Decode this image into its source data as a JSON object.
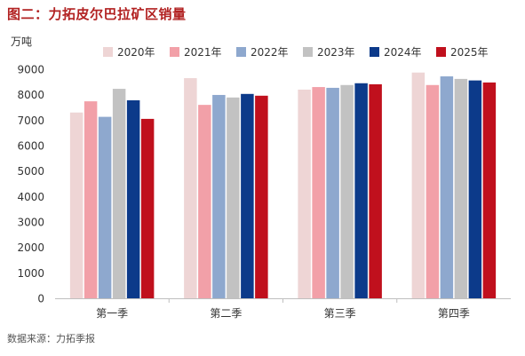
{
  "title": "图二：力拓皮尔巴拉矿区销量",
  "source": "数据来源：力拓季报",
  "colors": [
    "#eed5d5",
    "#f2a0a8",
    "#8ea8ce",
    "#c2c2c2",
    "#0c3a8a",
    "#c0101d"
  ],
  "chart_data": {
    "type": "bar",
    "title": "",
    "ylabel": "万吨",
    "xlabel": "",
    "categories": [
      "第一季",
      "第二季",
      "第三季",
      "第四季"
    ],
    "ylim": [
      0,
      9000
    ],
    "yticks": [
      0,
      1000,
      2000,
      3000,
      4000,
      5000,
      6000,
      7000,
      8000,
      9000
    ],
    "grid": false,
    "legend_position": "top",
    "series": [
      {
        "name": "2020年",
        "values": [
          7300,
          8650,
          8200,
          8870
        ]
      },
      {
        "name": "2021年",
        "values": [
          7740,
          7600,
          8300,
          8380
        ]
      },
      {
        "name": "2022年",
        "values": [
          7130,
          7990,
          8270,
          8720
        ]
      },
      {
        "name": "2023年",
        "values": [
          8230,
          7890,
          8380,
          8620
        ]
      },
      {
        "name": "2024年",
        "values": [
          7780,
          8030,
          8450,
          8560
        ]
      },
      {
        "name": "2025年",
        "values": [
          7050,
          7960,
          8410,
          8480
        ]
      }
    ]
  }
}
